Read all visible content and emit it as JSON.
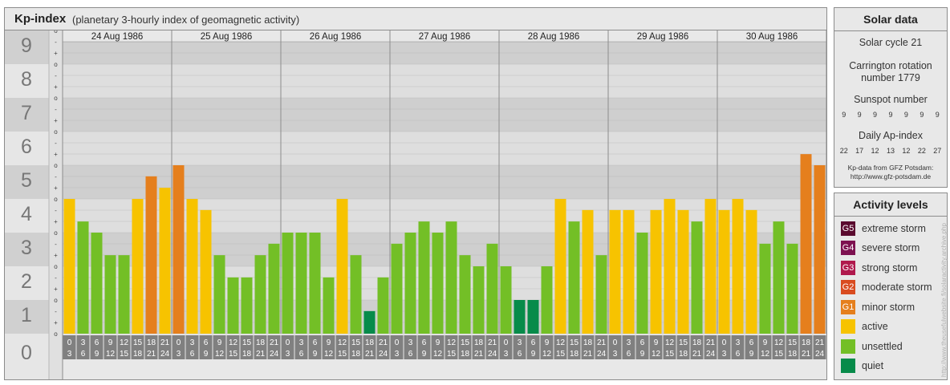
{
  "header": {
    "title": "Kp-index",
    "subtitle": "(planetary 3-hourly index of geomagnetic activity)"
  },
  "chart_data": {
    "type": "bar",
    "title": "Kp-index",
    "subtitle": "(planetary 3-hourly index of geomagnetic activity)",
    "ylim": [
      0,
      9
    ],
    "y_ticks": [
      "0",
      "1",
      "2",
      "3",
      "4",
      "5",
      "6",
      "7",
      "8",
      "9"
    ],
    "y_minor_labels": [
      "o",
      "+",
      "-",
      "o"
    ],
    "days": [
      "24 Aug 1986",
      "25 Aug 1986",
      "26 Aug 1986",
      "27 Aug 1986",
      "28 Aug 1986",
      "29 Aug 1986",
      "30 Aug 1986"
    ],
    "interval_starts": [
      "0",
      "3",
      "6",
      "9",
      "12",
      "15",
      "18",
      "21"
    ],
    "interval_ends": [
      "3",
      "6",
      "9",
      "12",
      "15",
      "18",
      "21",
      "24"
    ],
    "values": [
      4.0,
      3.33,
      3.0,
      2.33,
      2.33,
      4.0,
      4.67,
      4.33,
      5.0,
      4.0,
      3.67,
      2.33,
      1.67,
      1.67,
      2.33,
      2.67,
      3.0,
      3.0,
      3.0,
      1.67,
      4.0,
      2.33,
      0.67,
      1.67,
      2.67,
      3.0,
      3.33,
      3.0,
      3.33,
      2.33,
      2.0,
      2.67,
      2.0,
      1.0,
      1.0,
      2.0,
      4.0,
      3.33,
      3.67,
      2.33,
      3.67,
      3.67,
      3.0,
      3.67,
      4.0,
      3.67,
      3.33,
      4.0,
      3.67,
      4.0,
      3.67,
      2.67,
      3.33,
      2.67,
      5.33,
      5.0
    ],
    "colors": {
      "quiet": "#078b4a",
      "unsettled": "#73bf26",
      "active": "#f7c300",
      "minor_storm": "#e57f1d",
      "moderate_storm": "#d94b1f"
    },
    "grid": true
  },
  "solar": {
    "title": "Solar data",
    "cycle": "Solar cycle 21",
    "carrington_1": "Carrington rotation",
    "carrington_2": "number 1779",
    "sunspot_title": "Sunspot number",
    "sunspots": [
      "9",
      "9",
      "9",
      "9",
      "9",
      "9",
      "9"
    ],
    "ap_title": "Daily Ap-index",
    "ap": [
      "22",
      "17",
      "12",
      "13",
      "12",
      "22",
      "27"
    ],
    "source_1": "Kp-data from GFZ Potsdam:",
    "source_2": "http://www.gfz-potsdam.de"
  },
  "levels": {
    "title": "Activity levels",
    "items": [
      {
        "code": "G5",
        "label": "extreme storm",
        "color": "#5a0a2e"
      },
      {
        "code": "G4",
        "label": "severe storm",
        "color": "#7d1150"
      },
      {
        "code": "G3",
        "label": "strong storm",
        "color": "#b0194d"
      },
      {
        "code": "G2",
        "label": "moderate storm",
        "color": "#d94b1f"
      },
      {
        "code": "G1",
        "label": "minor storm",
        "color": "#e57f1d"
      },
      {
        "code": "",
        "label": "active",
        "color": "#f7c300"
      },
      {
        "code": "",
        "label": "unsettled",
        "color": "#73bf26"
      },
      {
        "code": "",
        "label": "quiet",
        "color": "#078b4a"
      }
    ]
  },
  "watermark": "http://www.theusefulwebsite.fi/solaractivity.archive.php"
}
